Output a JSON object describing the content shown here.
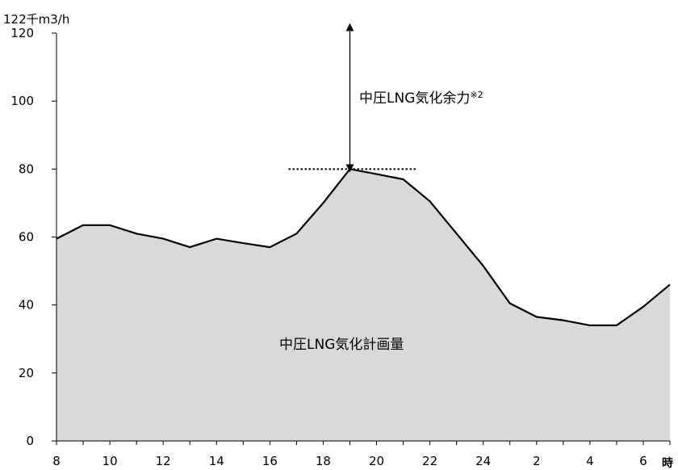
{
  "chart_data": {
    "type": "area",
    "y_unit_label": "122千m3/h",
    "x_unit_label": "時",
    "ylim": [
      0,
      120
    ],
    "y_ticks": [
      0,
      20,
      40,
      60,
      80,
      100,
      120
    ],
    "x_tick_labels": [
      "8",
      "10",
      "12",
      "14",
      "16",
      "18",
      "20",
      "22",
      "24",
      "2",
      "4",
      "6"
    ],
    "series": [
      {
        "name": "中圧LNG気化計画量",
        "hours": [
          8,
          9,
          10,
          11,
          12,
          13,
          14,
          15,
          16,
          17,
          18,
          19,
          20,
          21,
          22,
          23,
          24,
          25,
          26,
          27,
          28,
          29,
          30,
          31
        ],
        "values": [
          59.5,
          63.5,
          63.5,
          61,
          59.5,
          57,
          59.5,
          58.2,
          57,
          61,
          70,
          80,
          78.5,
          77,
          70.5,
          61,
          51.5,
          40.5,
          36.5,
          35.5,
          34,
          34,
          39.5,
          46
        ]
      }
    ],
    "fill_color": "#d9d9d9",
    "line_color": "#000000",
    "reference_level": 80,
    "reference_span_hours": [
      16.7,
      21.5
    ],
    "margin_arrow": {
      "hour": 19,
      "from": 80,
      "to": 122
    },
    "annotations": {
      "margin_label": "中圧LNG気化余力",
      "margin_note": "※2",
      "area_label": "中圧LNG気化計画量"
    },
    "grid": false
  }
}
